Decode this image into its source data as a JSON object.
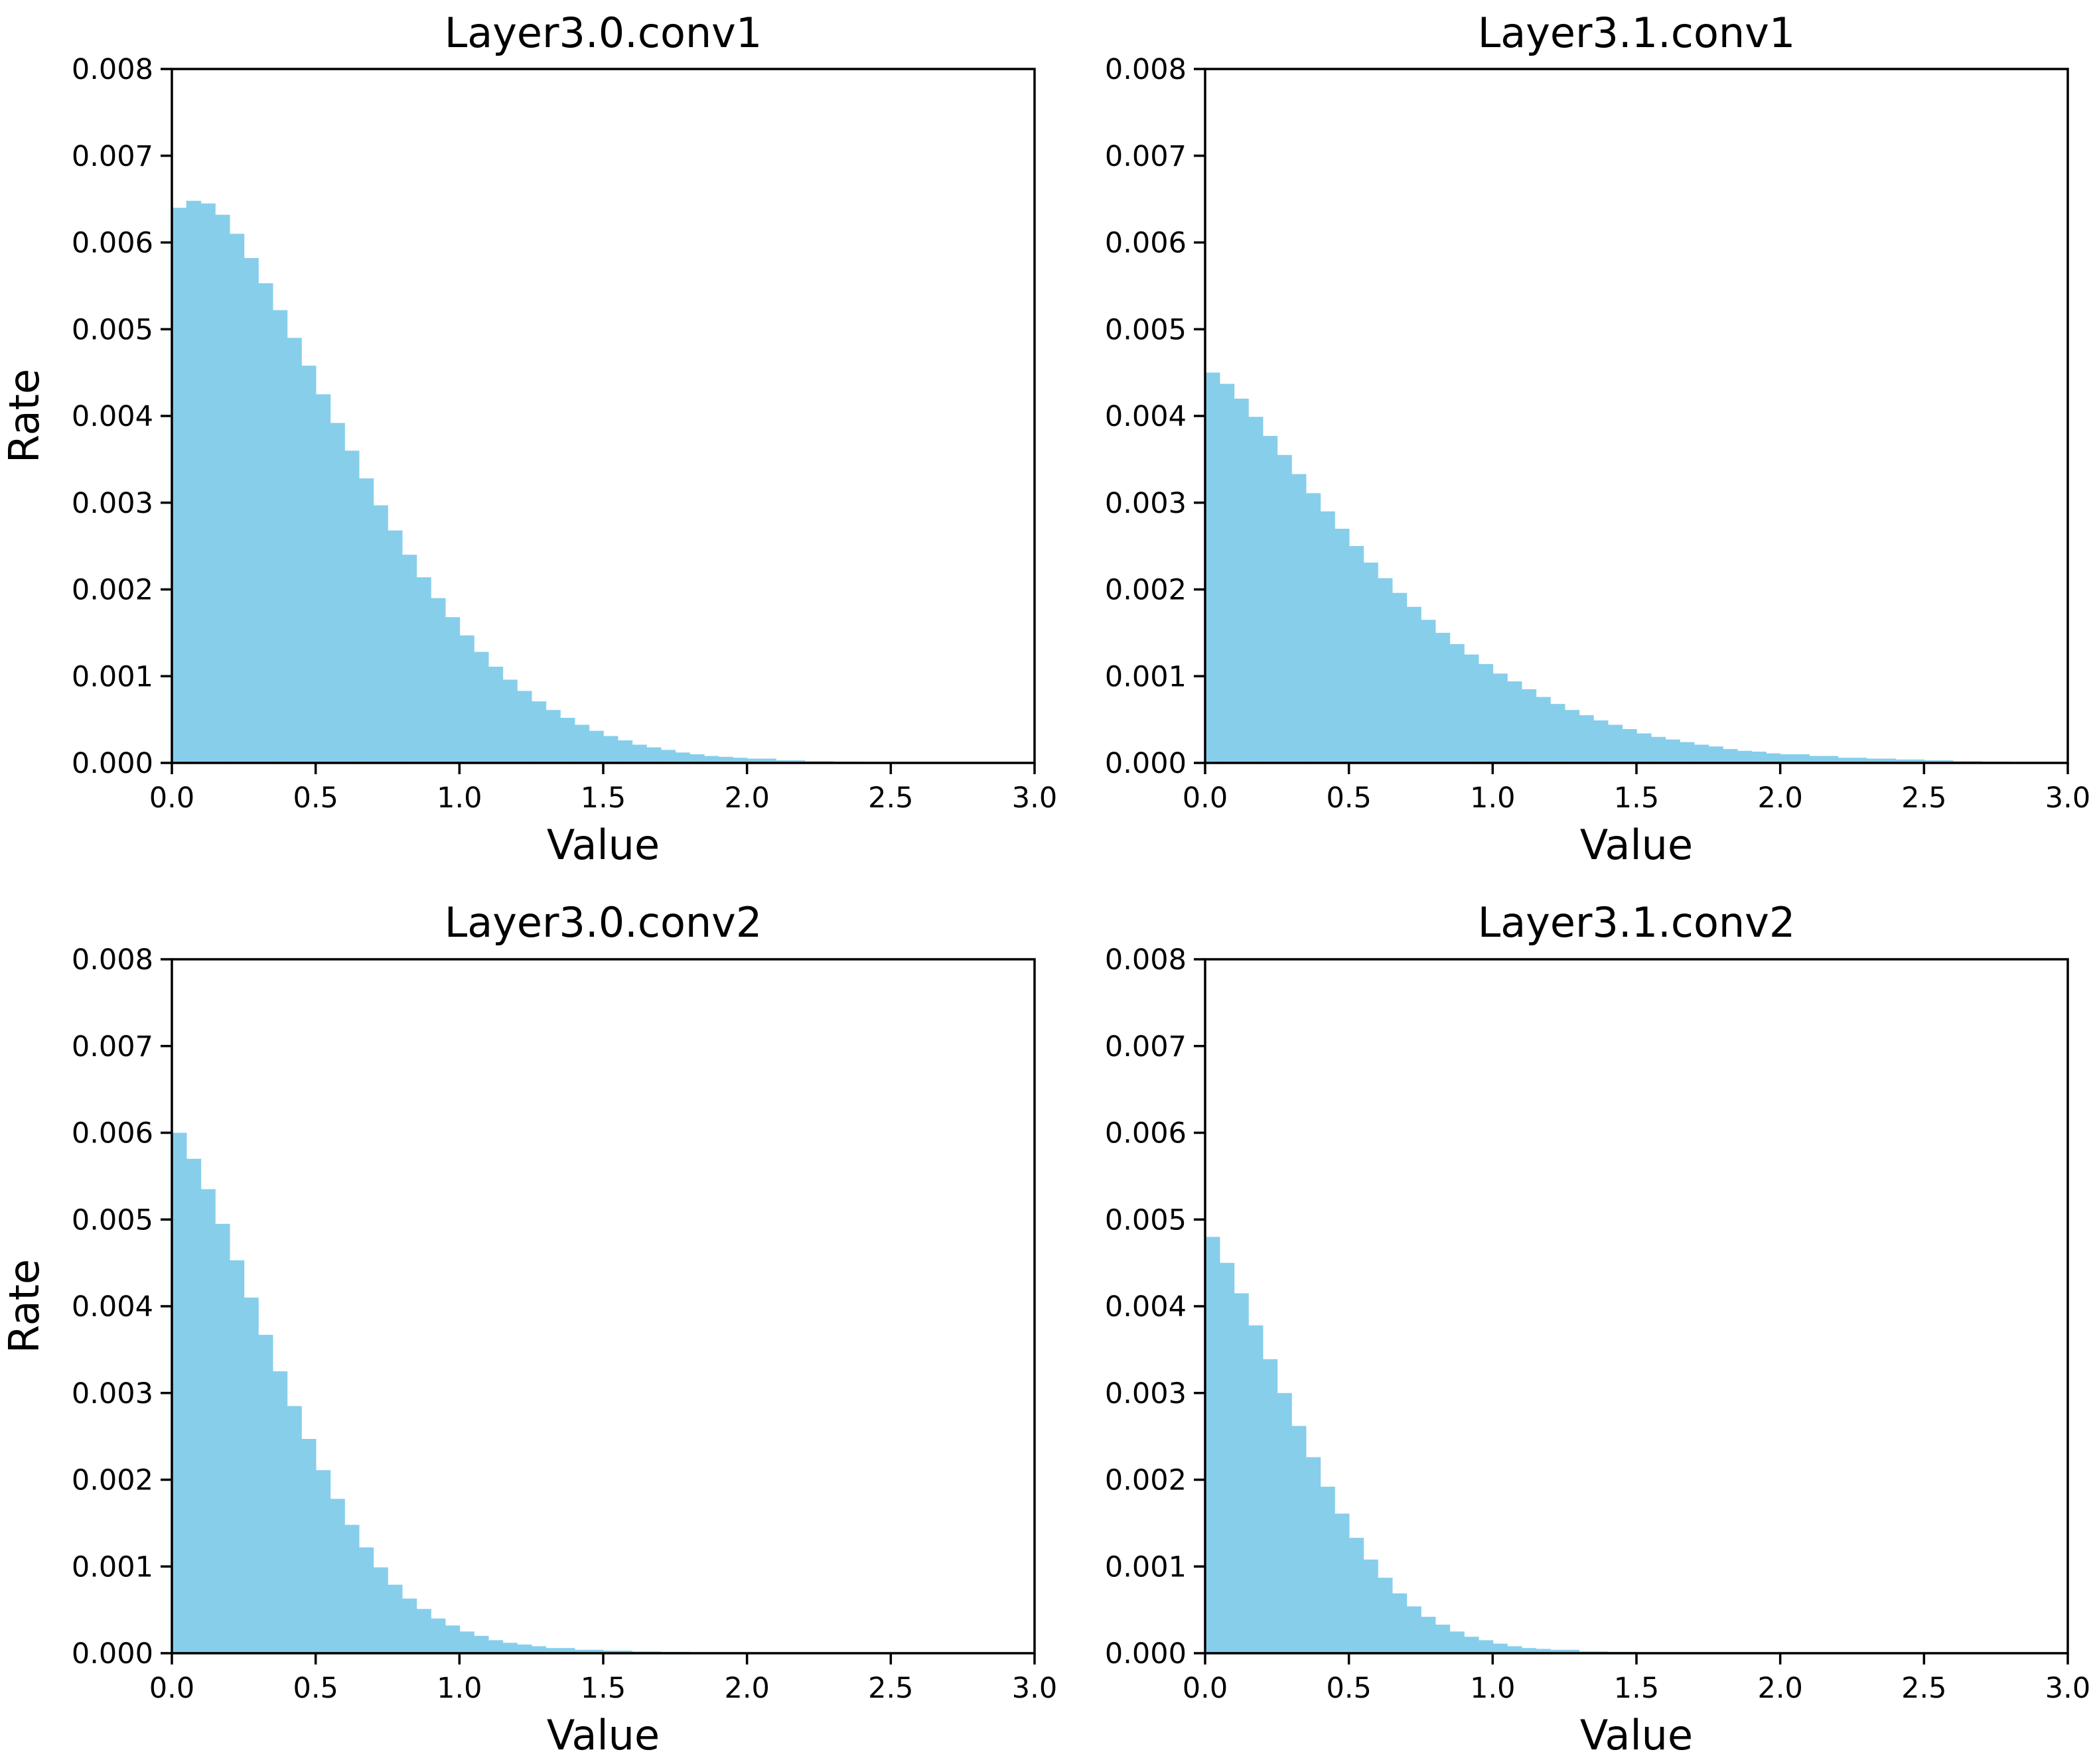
{
  "figure": {
    "bar_color": "#87ceeb"
  },
  "chart_data": [
    {
      "type": "bar",
      "title": "Layer3.0.conv1",
      "xlabel": "Value",
      "ylabel": "Rate",
      "xlim": [
        0.0,
        3.0
      ],
      "ylim": [
        0.0,
        0.008
      ],
      "xticks": [
        "0.0",
        "0.5",
        "1.0",
        "1.5",
        "2.0",
        "2.5",
        "3.0"
      ],
      "yticks": [
        "0.000",
        "0.001",
        "0.002",
        "0.003",
        "0.004",
        "0.005",
        "0.006",
        "0.007",
        "0.008"
      ],
      "grid": false,
      "x": [
        0.0,
        0.05,
        0.1,
        0.15,
        0.2,
        0.25,
        0.3,
        0.35,
        0.4,
        0.45,
        0.5,
        0.55,
        0.6,
        0.65,
        0.7,
        0.75,
        0.8,
        0.85,
        0.9,
        0.95,
        1.0,
        1.05,
        1.1,
        1.15,
        1.2,
        1.25,
        1.3,
        1.35,
        1.4,
        1.45,
        1.5,
        1.55,
        1.6,
        1.65,
        1.7,
        1.75,
        1.8,
        1.85,
        1.9,
        1.95,
        2.0,
        2.1,
        2.2,
        2.3,
        2.4,
        2.5,
        2.6,
        2.7
      ],
      "values": [
        0.0064,
        0.00648,
        0.00645,
        0.00632,
        0.0061,
        0.00582,
        0.00553,
        0.00522,
        0.0049,
        0.00458,
        0.00425,
        0.00392,
        0.0036,
        0.00328,
        0.00297,
        0.00268,
        0.0024,
        0.00214,
        0.0019,
        0.00168,
        0.00147,
        0.00128,
        0.00111,
        0.00096,
        0.00083,
        0.00071,
        0.00061,
        0.00052,
        0.00044,
        0.00037,
        0.00031,
        0.00026,
        0.00021,
        0.00018,
        0.00015,
        0.00012,
        0.0001,
        8e-05,
        7e-05,
        6e-05,
        5e-05,
        3e-05,
        2e-05,
        1.5e-05,
        1e-05,
        6e-06,
        3e-06,
        0.0
      ]
    },
    {
      "type": "bar",
      "title": "Layer3.1.conv1",
      "xlabel": "Value",
      "ylabel": "",
      "xlim": [
        0.0,
        3.0
      ],
      "ylim": [
        0.0,
        0.008
      ],
      "xticks": [
        "0.0",
        "0.5",
        "1.0",
        "1.5",
        "2.0",
        "2.5",
        "3.0"
      ],
      "yticks": [
        "0.000",
        "0.001",
        "0.002",
        "0.003",
        "0.004",
        "0.005",
        "0.006",
        "0.007",
        "0.008"
      ],
      "grid": false,
      "x": [
        0.0,
        0.05,
        0.1,
        0.15,
        0.2,
        0.25,
        0.3,
        0.35,
        0.4,
        0.45,
        0.5,
        0.55,
        0.6,
        0.65,
        0.7,
        0.75,
        0.8,
        0.85,
        0.9,
        0.95,
        1.0,
        1.05,
        1.1,
        1.15,
        1.2,
        1.25,
        1.3,
        1.35,
        1.4,
        1.45,
        1.5,
        1.55,
        1.6,
        1.65,
        1.7,
        1.75,
        1.8,
        1.85,
        1.9,
        1.95,
        2.0,
        2.1,
        2.2,
        2.3,
        2.4,
        2.5,
        2.6,
        2.7,
        2.8,
        2.9
      ],
      "values": [
        0.0045,
        0.00437,
        0.0042,
        0.00399,
        0.00377,
        0.00355,
        0.00333,
        0.00311,
        0.0029,
        0.0027,
        0.0025,
        0.00231,
        0.00213,
        0.00196,
        0.0018,
        0.00165,
        0.0015,
        0.00137,
        0.00125,
        0.00114,
        0.00103,
        0.00094,
        0.00085,
        0.00076,
        0.00068,
        0.00061,
        0.00055,
        0.00049,
        0.00044,
        0.00039,
        0.00034,
        0.0003,
        0.00027,
        0.00024,
        0.00021,
        0.00019,
        0.00016,
        0.00014,
        0.00013,
        0.00011,
        0.0001,
        8e-05,
        6e-05,
        5e-05,
        4e-05,
        3e-05,
        2e-05,
        1.5e-05,
        1e-05,
        5e-06
      ]
    },
    {
      "type": "bar",
      "title": "Layer3.0.conv2",
      "xlabel": "Value",
      "ylabel": "Rate",
      "xlim": [
        0.0,
        3.0
      ],
      "ylim": [
        0.0,
        0.008
      ],
      "xticks": [
        "0.0",
        "0.5",
        "1.0",
        "1.5",
        "2.0",
        "2.5",
        "3.0"
      ],
      "yticks": [
        "0.000",
        "0.001",
        "0.002",
        "0.003",
        "0.004",
        "0.005",
        "0.006",
        "0.007",
        "0.008"
      ],
      "grid": false,
      "x": [
        0.0,
        0.05,
        0.1,
        0.15,
        0.2,
        0.25,
        0.3,
        0.35,
        0.4,
        0.45,
        0.5,
        0.55,
        0.6,
        0.65,
        0.7,
        0.75,
        0.8,
        0.85,
        0.9,
        0.95,
        1.0,
        1.05,
        1.1,
        1.15,
        1.2,
        1.25,
        1.3,
        1.4,
        1.5,
        1.6,
        1.7,
        1.8,
        1.9
      ],
      "values": [
        0.006,
        0.0057,
        0.00535,
        0.00495,
        0.00453,
        0.0041,
        0.00367,
        0.00325,
        0.00285,
        0.00247,
        0.00211,
        0.00178,
        0.00148,
        0.00122,
        0.00099,
        0.00079,
        0.00063,
        0.00051,
        0.0004,
        0.00032,
        0.00025,
        0.0002,
        0.00015,
        0.00012,
        0.0001,
        8e-05,
        6e-05,
        4e-05,
        3e-05,
        2e-05,
        1.5e-05,
        1e-05,
        5e-06
      ]
    },
    {
      "type": "bar",
      "title": "Layer3.1.conv2",
      "xlabel": "Value",
      "ylabel": "",
      "xlim": [
        0.0,
        3.0
      ],
      "ylim": [
        0.0,
        0.008
      ],
      "xticks": [
        "0.0",
        "0.5",
        "1.0",
        "1.5",
        "2.0",
        "2.5",
        "3.0"
      ],
      "yticks": [
        "0.000",
        "0.001",
        "0.002",
        "0.003",
        "0.004",
        "0.005",
        "0.006",
        "0.007",
        "0.008"
      ],
      "grid": false,
      "x": [
        0.0,
        0.05,
        0.1,
        0.15,
        0.2,
        0.25,
        0.3,
        0.35,
        0.4,
        0.45,
        0.5,
        0.55,
        0.6,
        0.65,
        0.7,
        0.75,
        0.8,
        0.85,
        0.9,
        0.95,
        1.0,
        1.05,
        1.1,
        1.15,
        1.2,
        1.3,
        1.4,
        1.5,
        1.6
      ],
      "values": [
        0.0048,
        0.0045,
        0.00415,
        0.00378,
        0.00339,
        0.003,
        0.00262,
        0.00226,
        0.00192,
        0.00161,
        0.00133,
        0.00108,
        0.00087,
        0.00069,
        0.00054,
        0.00042,
        0.00033,
        0.00025,
        0.00019,
        0.00015,
        0.00011,
        8e-05,
        6e-05,
        5e-05,
        4e-05,
        2e-05,
        1.5e-05,
        1e-05,
        5e-06
      ]
    }
  ]
}
